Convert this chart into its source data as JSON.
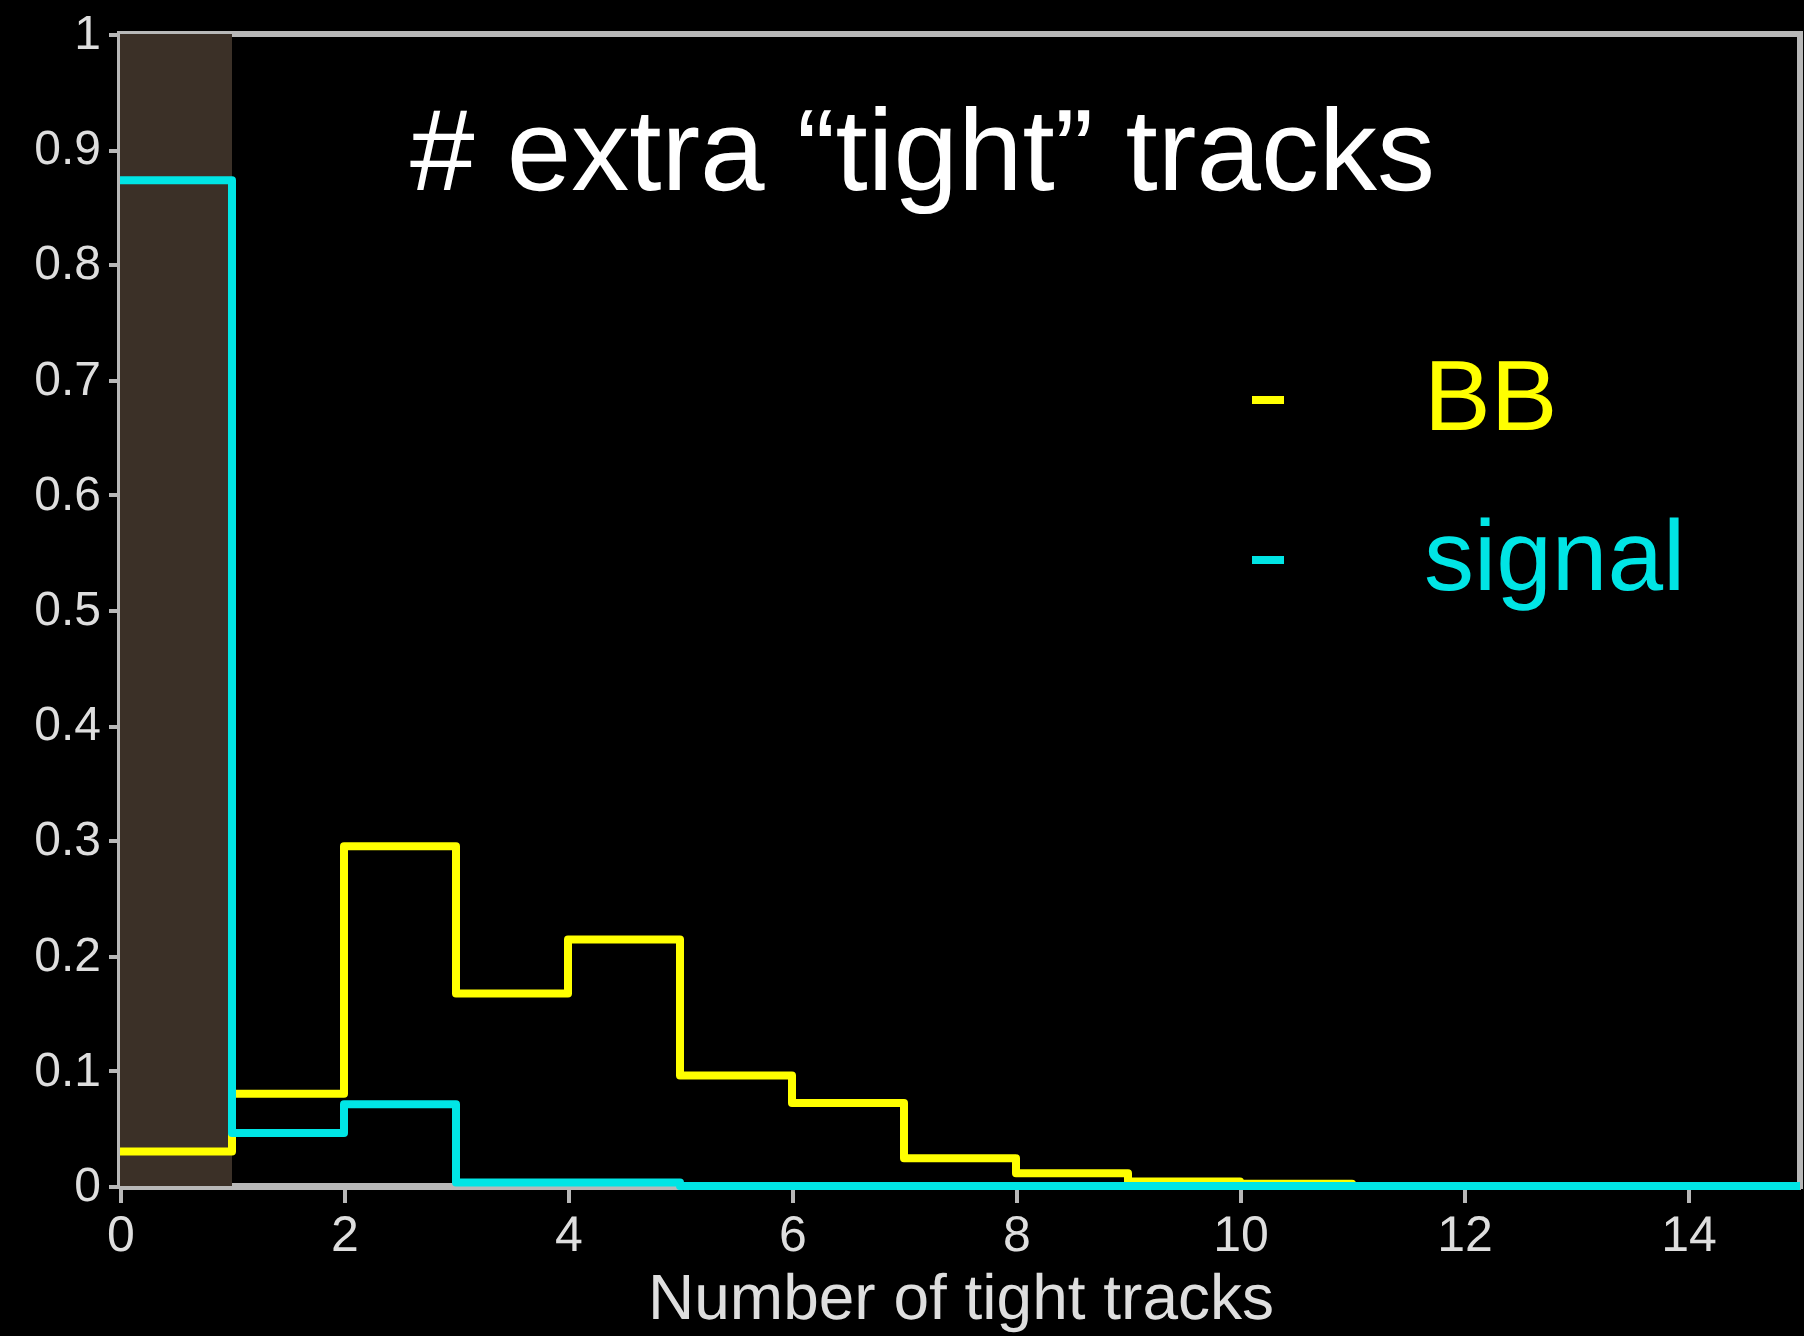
{
  "chart_data": {
    "type": "histogram",
    "title": "# extra “tight” tracks",
    "xlabel": "Number of tight tracks",
    "bins": [
      0,
      1,
      2,
      3,
      4,
      5,
      6,
      7,
      8,
      9,
      10,
      11,
      12,
      13,
      14,
      15
    ],
    "series": [
      {
        "name": "BB",
        "color": "#ffff00",
        "values": [
          0.03,
          0.08,
          0.295,
          0.167,
          0.214,
          0.096,
          0.072,
          0.024,
          0.011,
          0.004,
          0.002,
          0,
          0,
          0,
          0
        ]
      },
      {
        "name": "signal",
        "color": "#00e5e5",
        "values": [
          0.873,
          0.046,
          0.071,
          0.003,
          0.003,
          0,
          0,
          0,
          0,
          0,
          0,
          0,
          0,
          0,
          0
        ]
      }
    ],
    "xlim": [
      0,
      15
    ],
    "ylim": [
      0,
      1
    ],
    "xticks": [
      0,
      2,
      4,
      6,
      8,
      10,
      12,
      14
    ],
    "yticks": [
      0,
      0.1,
      0.2,
      0.3,
      0.4,
      0.5,
      0.6,
      0.7,
      0.8,
      0.9,
      1
    ],
    "bands": [
      {
        "axis": "x",
        "from": 0,
        "to": 1,
        "color": "#3b3027"
      }
    ],
    "legend": "top right"
  }
}
